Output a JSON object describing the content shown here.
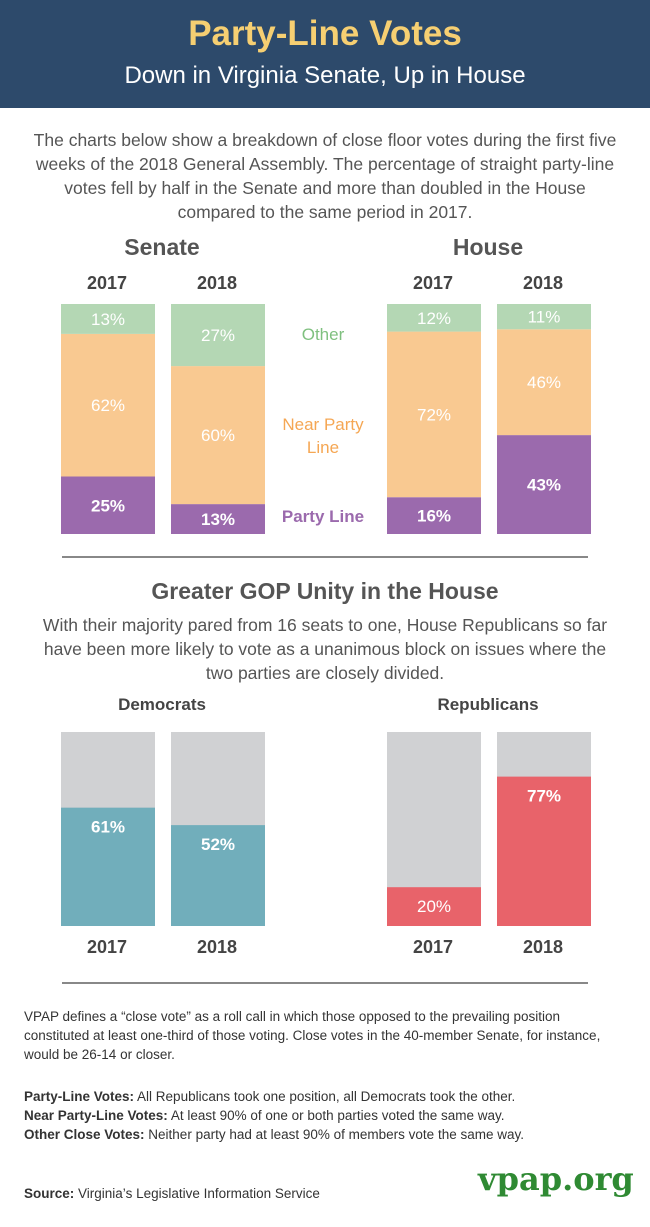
{
  "header": {
    "title": "Party-Line Votes",
    "subtitle": "Down in Virginia Senate, Up in House"
  },
  "intro": "The charts below show a breakdown of close floor votes during the first five weeks of the 2018 General Assembly. The percentage of straight party-line votes fell by half in the Senate and more than doubled in the House compared to the same period in 2017.",
  "colors": {
    "header_bg": "#2d4a6b",
    "title": "#f6cf72",
    "other": "#b4d7b4",
    "near": "#f9c991",
    "party": "#9b6aad",
    "gray": "#d0d1d3",
    "dem": "#71aebb",
    "rep": "#e8636a",
    "logo": "#2f8a33"
  },
  "legend": {
    "other": "Other",
    "near": "Near Party Line",
    "party": "Party Line"
  },
  "section2": {
    "title": "Greater GOP Unity in the House",
    "text": "With their majority pared from 16 seats to one, House Republicans so far have been more likely to vote as a unanimous block on issues where the two parties are closely divided."
  },
  "chart_data": [
    {
      "type": "bar",
      "stacked": true,
      "title": "Senate",
      "categories": [
        "2017",
        "2018"
      ],
      "series": [
        {
          "name": "Party Line",
          "values": [
            25,
            13
          ]
        },
        {
          "name": "Near Party Line",
          "values": [
            62,
            60
          ]
        },
        {
          "name": "Other",
          "values": [
            13,
            27
          ]
        }
      ],
      "ylim": [
        0,
        100
      ]
    },
    {
      "type": "bar",
      "stacked": true,
      "title": "House",
      "categories": [
        "2017",
        "2018"
      ],
      "series": [
        {
          "name": "Party Line",
          "values": [
            16,
            43
          ]
        },
        {
          "name": "Near Party Line",
          "values": [
            72,
            46
          ]
        },
        {
          "name": "Other",
          "values": [
            12,
            11
          ]
        }
      ],
      "ylim": [
        0,
        100
      ]
    },
    {
      "type": "bar",
      "title": "Democrats",
      "categories": [
        "2017",
        "2018"
      ],
      "values": [
        61,
        52
      ],
      "ylim": [
        0,
        100
      ]
    },
    {
      "type": "bar",
      "title": "Republicans",
      "categories": [
        "2017",
        "2018"
      ],
      "values": [
        20,
        77
      ],
      "ylim": [
        0,
        100
      ]
    }
  ],
  "footnotes": {
    "definition": "VPAP defines a “close vote” as a roll call in which those opposed to the prevailing position constituted at least one-third of those voting. Close votes in the 40-member Senate, for instance, would be 26-14 or closer.",
    "party_line_label": "Party-Line Votes:",
    "party_line_text": "All Republicans took one position, all Democrats took the other.",
    "near_label": "Near Party-Line Votes:",
    "near_text": "At least 90% of one or both parties voted the same way.",
    "other_label": "Other Close Votes:",
    "other_text": "Neither party had at least 90% of members vote the same way.",
    "source_label": "Source:",
    "source_text": "Virginia’s Legislative Information Service"
  },
  "logo": "vpap.org"
}
